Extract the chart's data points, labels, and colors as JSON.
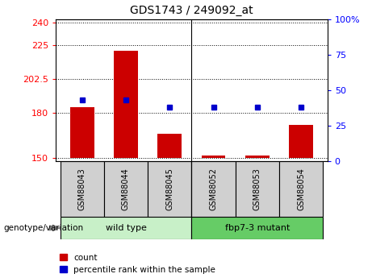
{
  "title": "GDS1743 / 249092_at",
  "samples": [
    "GSM88043",
    "GSM88044",
    "GSM88045",
    "GSM88052",
    "GSM88053",
    "GSM88054"
  ],
  "counts": [
    184,
    221,
    166,
    152,
    152,
    172
  ],
  "percentiles": [
    43,
    43,
    38,
    38,
    38,
    38
  ],
  "baseline": 150,
  "ylim_left": [
    148,
    242
  ],
  "ylim_right": [
    0,
    100
  ],
  "yticks_left": [
    150,
    180,
    202.5,
    225,
    240
  ],
  "yticks_right": [
    0,
    25,
    50,
    75,
    100
  ],
  "ytick_labels_left": [
    "150",
    "180",
    "202.5",
    "225",
    "240"
  ],
  "ytick_labels_right": [
    "0",
    "25",
    "50",
    "75",
    "100%"
  ],
  "groups": [
    {
      "label": "wild type",
      "start": 0,
      "end": 2,
      "color": "#c8f0c8"
    },
    {
      "label": "fbp7-3 mutant",
      "start": 3,
      "end": 5,
      "color": "#66cc66"
    }
  ],
  "bar_color": "#cc0000",
  "dot_color": "#0000cc",
  "sample_bg_color": "#d0d0d0",
  "legend_count_label": "count",
  "legend_percentile_label": "percentile rank within the sample"
}
